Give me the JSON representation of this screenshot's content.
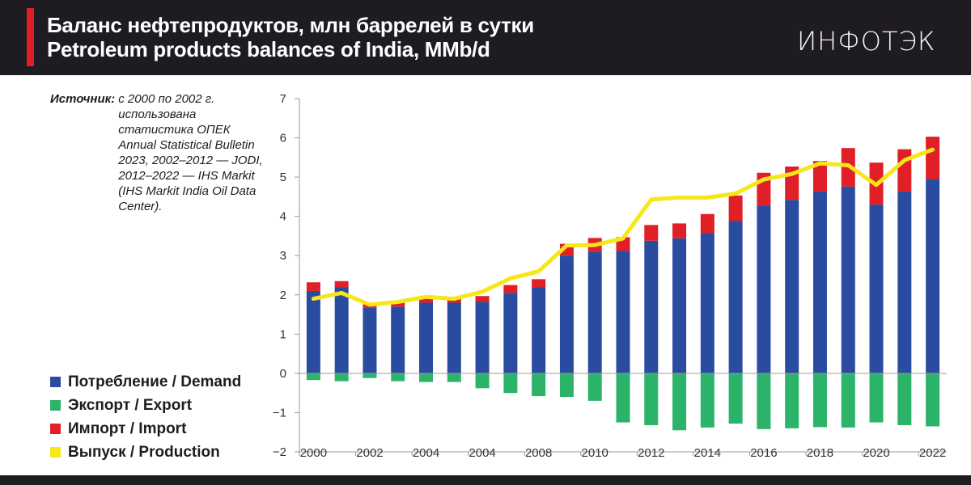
{
  "header": {
    "title_ru": "Баланс нефтепродуктов, млн баррелей в сутки",
    "title_en": "Petroleum products balances of India, MMb/d",
    "logo": "ИНФОТЭК"
  },
  "source": {
    "label": "Источник:",
    "text": "с 2000 по 2002 г. использована статистика ОПЕК Annual Statistical Bulletin 2023, 2002–2012 — JODI, 2012–2022 — IHS Markit (IHS Markit India Oil Data Center)."
  },
  "colors": {
    "demand": "#2a4ca0",
    "export": "#2cb36a",
    "import": "#e01f26",
    "production": "#f6e61a",
    "header_bg": "#1f1b22"
  },
  "chart_data": {
    "type": "bar",
    "title": "Petroleum products balances of India, MMb/d",
    "xlabel": "",
    "ylabel": "",
    "ylim": [
      -2,
      7
    ],
    "yticks": [
      "7",
      "6",
      "5",
      "4",
      "3",
      "2",
      "1",
      "0",
      "−1",
      "−2"
    ],
    "categories": [
      "2000",
      "2001",
      "2002",
      "2003",
      "2004",
      "2005",
      "2006",
      "2007",
      "2008",
      "2009",
      "2010",
      "2011",
      "2012",
      "2013",
      "2014",
      "2015",
      "2016",
      "2017",
      "2018",
      "2019",
      "2020",
      "2021",
      "2022"
    ],
    "xtick_labels": [
      "2000",
      "2002",
      "2004",
      "2004",
      "2008",
      "2010",
      "2012",
      "2014",
      "2016",
      "2018",
      "2020",
      "2022"
    ],
    "legend": [
      {
        "key": "demand",
        "label": "Потребление / Demand"
      },
      {
        "key": "export",
        "label": "Экспорт / Export"
      },
      {
        "key": "import",
        "label": "Импорт / Import"
      },
      {
        "key": "production",
        "label": "Выпуск / Production"
      }
    ],
    "series": [
      {
        "name": "Потребление / Demand",
        "key": "demand",
        "type": "bar",
        "values": [
          2.1,
          2.2,
          1.68,
          1.7,
          1.8,
          1.8,
          1.82,
          2.05,
          2.2,
          3.0,
          3.1,
          3.12,
          3.38,
          3.44,
          3.58,
          3.88,
          4.28,
          4.42,
          4.63,
          4.76,
          4.3,
          4.63,
          4.95
        ]
      },
      {
        "name": "Импорт / Import",
        "key": "import",
        "type": "bar",
        "values": [
          0.22,
          0.15,
          0.08,
          0.1,
          0.12,
          0.13,
          0.15,
          0.2,
          0.2,
          0.3,
          0.35,
          0.35,
          0.4,
          0.38,
          0.48,
          0.65,
          0.83,
          0.85,
          0.78,
          0.98,
          1.07,
          1.08,
          1.08
        ]
      },
      {
        "name": "Экспорт / Export",
        "key": "export",
        "type": "bar",
        "values": [
          -0.17,
          -0.2,
          -0.12,
          -0.2,
          -0.22,
          -0.22,
          -0.38,
          -0.5,
          -0.58,
          -0.6,
          -0.7,
          -1.25,
          -1.32,
          -1.45,
          -1.38,
          -1.28,
          -1.42,
          -1.4,
          -1.37,
          -1.38,
          -1.25,
          -1.32,
          -1.35
        ]
      },
      {
        "name": "Выпуск / Production",
        "key": "production",
        "type": "line",
        "values": [
          1.9,
          2.05,
          1.75,
          1.82,
          1.95,
          1.9,
          2.08,
          2.42,
          2.6,
          3.26,
          3.27,
          3.44,
          4.43,
          4.48,
          4.48,
          4.58,
          4.94,
          5.08,
          5.35,
          5.3,
          4.8,
          5.43,
          5.7
        ]
      }
    ]
  }
}
